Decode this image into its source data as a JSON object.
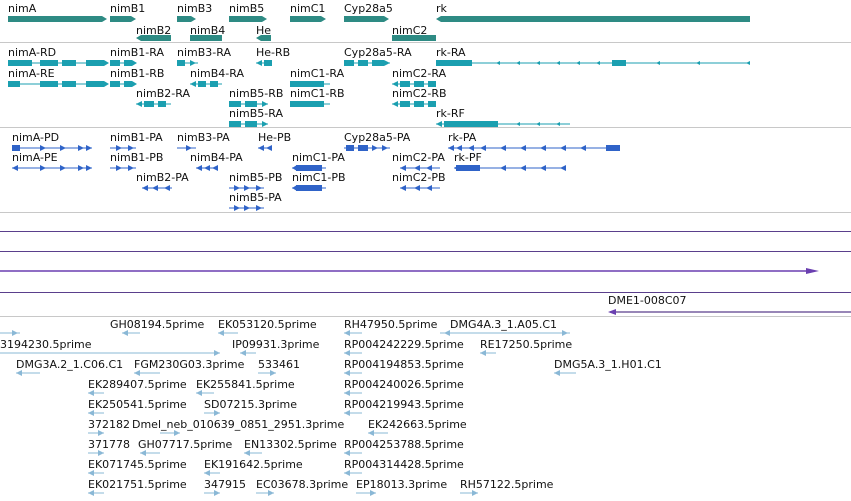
{
  "colors": {
    "gene": "#2e8b84",
    "rna": "#1b9fb0",
    "protein": "#2f63c8",
    "line_purple": "#5a3f8c",
    "arrow_purple": "#6a3fb0",
    "est": "#8ab8d6"
  },
  "gene_track": {
    "labels": [
      "nimA",
      "nimB1",
      "nimB3",
      "nimB5",
      "nimC1",
      "Cyp28a5",
      "rk",
      "nimB2",
      "nimB4",
      "He",
      "nimC2"
    ]
  },
  "rna_track": {
    "labels": [
      "nimA-RD",
      "nimB1-RA",
      "nimB3-RA",
      "He-RB",
      "Cyp28a5-RA",
      "rk-RA",
      "nimA-RE",
      "nimB1-RB",
      "nimB4-RA",
      "nimC1-RA",
      "nimC2-RA",
      "nimB2-RA",
      "nimB5-RB",
      "nimC1-RB",
      "nimC2-RB",
      "nimB5-RA",
      "rk-RF"
    ]
  },
  "protein_track": {
    "labels": [
      "nimA-PD",
      "nimB1-PA",
      "nimB3-PA",
      "He-PB",
      "Cyp28a5-PA",
      "rk-PA",
      "nimA-PE",
      "nimB1-PB",
      "nimB4-PA",
      "nimC1-PA",
      "nimC2-PA",
      "rk-PF",
      "nimB2-PA",
      "nimB5-PB",
      "nimC1-PB",
      "nimC2-PB",
      "nimB5-PA"
    ]
  },
  "clone_track": {
    "labels": [
      "DME1-008C07"
    ]
  },
  "est_track": {
    "labels": [
      "GH08194.5prime",
      "EK053120.5prime",
      "RH47950.5prime",
      "DMG4A.3_1.A05.C1",
      "3194230.5prime",
      "IP09931.3prime",
      "RP004242229.5prime",
      "RE17250.5prime",
      "DMG3A.2_1.C06.C1",
      "FGM230G03.3prime",
      "533461",
      "RP004194853.5prime",
      "DMG5A.3_1.H01.C1",
      "EK289407.5prime",
      "EK255841.5prime",
      "RP004240026.5prime",
      "EK250541.5prime",
      "SD07215.3prime",
      "RP004219943.5prime",
      "372182",
      "Dmel_neb_010639_0851_2951.3prime",
      "EK242663.5prime",
      "371778",
      "GH07717.5prime",
      "EN13302.5prime",
      "RP004253788.5prime",
      "EK071745.5prime",
      "EK191642.5prime",
      "RP004314428.5prime",
      "EK021751.5prime",
      "347915",
      "EC03678.3prime",
      "EP18013.3prime",
      "RH57122.5prime"
    ]
  }
}
